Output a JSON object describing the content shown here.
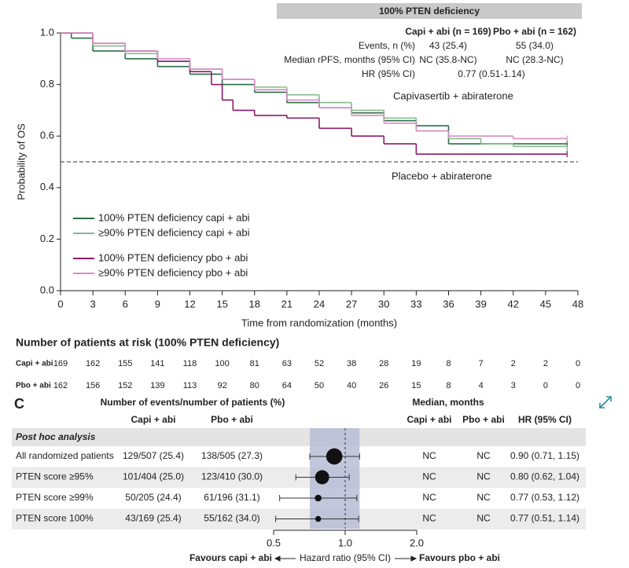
{
  "chart_data": [
    {
      "type": "line",
      "step": true,
      "banner": "100% PTEN deficiency",
      "stats": {
        "columns": [
          "Capi + abi (n = 169)",
          "Pbo + abi (n = 162)"
        ],
        "column_colors": [
          "#2e7d3f",
          "#8e2a74"
        ],
        "rows": [
          {
            "label": "Events, n (%)",
            "values": [
              "43 (25.4)",
              "55 (34.0)"
            ]
          },
          {
            "label": "Median rPFS, months (95% CI)",
            "values": [
              "NC (35.8-NC)",
              "NC (28.3-NC)"
            ]
          },
          {
            "label": "HR (95% CI)",
            "values": [
              "0.77 (0.51-1.14)"
            ]
          }
        ]
      },
      "xlabel": "Time from randomization (months)",
      "ylabel": "Probability of OS",
      "xlim": [
        0,
        48
      ],
      "xticks": [
        0,
        3,
        6,
        9,
        12,
        15,
        18,
        21,
        24,
        27,
        30,
        33,
        36,
        39,
        42,
        45,
        48
      ],
      "ylim": [
        0,
        1
      ],
      "yticks": [
        {
          "value": 0,
          "label": "0.0"
        },
        0.2,
        0.4,
        0.6,
        0.8,
        {
          "value": 1,
          "label": "1.0"
        }
      ],
      "ref_line": 0.5,
      "annotations": [
        {
          "text": "Capivasertib + abiraterone",
          "color": "#2e7d3f"
        },
        {
          "text": "Placebo + abiraterone",
          "color": "#8e2a74"
        }
      ],
      "legend": "lower left",
      "series": [
        {
          "name": "100% PTEN deficiency capi + abi",
          "color": "#2a6e45",
          "x": [
            0,
            1,
            3,
            6,
            9,
            12,
            15,
            18,
            21,
            24,
            27,
            30,
            33,
            36,
            39,
            42,
            47
          ],
          "values": [
            1,
            0.98,
            0.93,
            0.9,
            0.87,
            0.84,
            0.8,
            0.77,
            0.73,
            0.71,
            0.69,
            0.66,
            0.64,
            0.57,
            0.57,
            0.57,
            0.57
          ]
        },
        {
          "name": "≥90% PTEN deficiency capi + abi",
          "color": "#86b98e",
          "x": [
            0,
            3,
            6,
            9,
            12,
            15,
            18,
            21,
            24,
            27,
            30,
            33,
            36,
            39,
            42,
            47
          ],
          "values": [
            1,
            0.95,
            0.92,
            0.89,
            0.86,
            0.82,
            0.79,
            0.76,
            0.73,
            0.7,
            0.67,
            0.62,
            0.59,
            0.57,
            0.56,
            0.55
          ]
        },
        {
          "name": "100% PTEN deficiency pbo + abi",
          "color": "#8b1a6b",
          "x": [
            0,
            3,
            6,
            9,
            12,
            14,
            15,
            16,
            18,
            21,
            24,
            27,
            30,
            33,
            47
          ],
          "values": [
            1,
            0.96,
            0.93,
            0.89,
            0.85,
            0.8,
            0.74,
            0.7,
            0.68,
            0.67,
            0.63,
            0.6,
            0.57,
            0.53,
            0.53
          ]
        },
        {
          "name": "≥90% PTEN deficiency pbo + abi",
          "color": "#d98cc4",
          "x": [
            0,
            3,
            6,
            9,
            12,
            15,
            18,
            21,
            24,
            27,
            30,
            33,
            36,
            39,
            42,
            47
          ],
          "values": [
            1,
            0.96,
            0.93,
            0.9,
            0.86,
            0.82,
            0.78,
            0.74,
            0.71,
            0.68,
            0.65,
            0.62,
            0.6,
            0.6,
            0.59,
            0.59
          ]
        }
      ],
      "risk_table": {
        "title": "Number of patients at risk (100% PTEN deficiency)",
        "rows": [
          {
            "label": "Capi + abi",
            "color": "#2e7d3f",
            "values": [
              169,
              162,
              155,
              141,
              118,
              100,
              81,
              63,
              52,
              38,
              28,
              19,
              8,
              7,
              2,
              2,
              0
            ]
          },
          {
            "label": "Pbo + abi",
            "color": "#8e2a74",
            "values": [
              162,
              156,
              152,
              139,
              113,
              92,
              80,
              64,
              50,
              40,
              26,
              15,
              8,
              4,
              3,
              0,
              0
            ]
          }
        ]
      }
    },
    {
      "type": "forest",
      "panel_label": "C",
      "column_groups": [
        "Number of events/number of patients (%)",
        "Median, months"
      ],
      "columns": [
        "Capi + abi",
        "Pbo + abi",
        "Capi + abi",
        "Pbo + abi",
        "HR (95% CI)"
      ],
      "column_colors": [
        "#2e7d3f",
        "#8e2a74",
        "#2e7d3f",
        "#8e2a74",
        "#222222"
      ],
      "section": "Post hoc analysis",
      "rows": [
        {
          "label": "All randomized patients",
          "events": [
            "129/507 (25.4)",
            "138/505 (27.3)"
          ],
          "median": [
            "NC",
            "NC"
          ],
          "hr_label": "0.90 (0.71, 1.15)",
          "hr": 0.9,
          "lo": 0.71,
          "hi": 1.15
        },
        {
          "label": "PTEN score ≥95%",
          "events": [
            "101/404 (25.0)",
            "123/410 (30.0)"
          ],
          "median": [
            "NC",
            "NC"
          ],
          "hr_label": "0.80 (0.62, 1.04)",
          "hr": 0.8,
          "lo": 0.62,
          "hi": 1.04
        },
        {
          "label": "PTEN score ≥99%",
          "events": [
            "50/205 (24.4)",
            "61/196 (31.1)"
          ],
          "median": [
            "NC",
            "NC"
          ],
          "hr_label": "0.77 (0.53, 1.12)",
          "hr": 0.77,
          "lo": 0.53,
          "hi": 1.12
        },
        {
          "label": "PTEN score 100%",
          "events": [
            "43/169 (25.4)",
            "55/162 (34.0)"
          ],
          "median": [
            "NC",
            "NC"
          ],
          "hr_label": "0.77 (0.51, 1.14)",
          "hr": 0.77,
          "lo": 0.51,
          "hi": 1.14
        }
      ],
      "xscale": "log",
      "xlim": [
        0.5,
        2.0
      ],
      "xticks": [
        0.5,
        {
          "value": 1,
          "label": "1.0"
        },
        {
          "value": 2,
          "label": "2.0"
        }
      ],
      "ref_line": 1,
      "xlabel": "Hazard ratio (95% CI)",
      "favours": [
        {
          "text": "Favours capi + abi",
          "color": "#2e7d3f"
        },
        {
          "text": "Favours pbo + abi",
          "color": "#8e2a74"
        }
      ],
      "marker_color": "#111111",
      "band_color": "#b7bdd6"
    }
  ]
}
